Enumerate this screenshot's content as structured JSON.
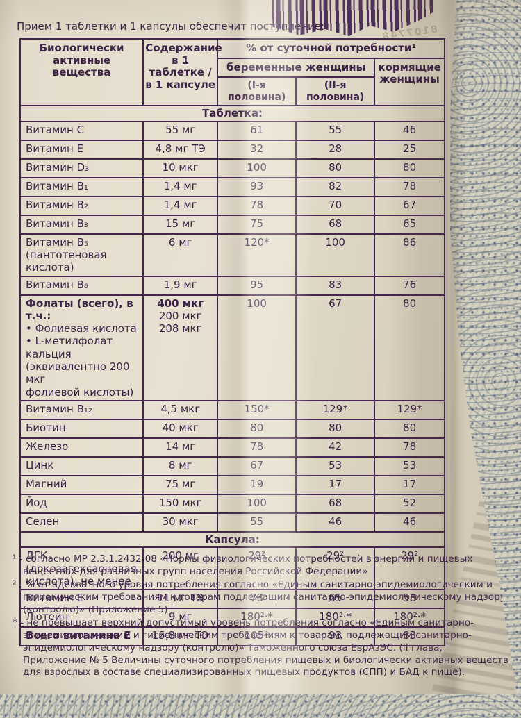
{
  "intro": "Прием 1 таблетки и 1 капсулы обеспечит поступление:",
  "ghost_print": "8107748",
  "colors": {
    "ink": "#3c2347",
    "paper": "#e2dac9",
    "barcode": "#4b2d5c",
    "fabric_pattern": "#58667c"
  },
  "table": {
    "headers": {
      "col_substance": "Биологически\nактивные вещества",
      "col_content": "Содержание\nв 1 таблетке /\nв 1 капсуле",
      "col_daily": "% от суточной потребности¹",
      "col_pregnant": "беременные  женщины",
      "col_pregnant_1": "(I-я половина)",
      "col_pregnant_2": "(II-я половина)",
      "col_nursing": "кормящие\nженщины"
    },
    "section_tablet": "Таблетка:",
    "section_capsule": "Капсула:",
    "tablet_rows": [
      {
        "name": "Витамин C",
        "amount": "55 мг",
        "values": [
          "61",
          "55",
          "46"
        ]
      },
      {
        "name": "Витамин E",
        "amount": "4,8 мг ТЭ",
        "values": [
          "32",
          "28",
          "25"
        ]
      },
      {
        "name": "Витамин D₃",
        "amount": "10 мкг",
        "values": [
          "100",
          "80",
          "80"
        ]
      },
      {
        "name": "Витамин B₁",
        "amount": "1,4 мг",
        "values": [
          "93",
          "82",
          "78"
        ]
      },
      {
        "name": "Витамин B₂",
        "amount": "1,4 мг",
        "values": [
          "78",
          "70",
          "67"
        ]
      },
      {
        "name": "Витамин B₃",
        "amount": "15 мг",
        "values": [
          "75",
          "68",
          "65"
        ]
      },
      {
        "name": "Витамин B₅\n(пантотеновая кислота)",
        "amount": "6 мг",
        "values": [
          "120*",
          "100",
          "86"
        ]
      },
      {
        "name": "Витамин B₆",
        "amount": "1,9 мг",
        "values": [
          "95",
          "83",
          "76"
        ]
      },
      {
        "name": "Фолаты (всего), в т.ч.:",
        "name_rest": "• Фолиевая кислота\n• L-метилфолат кальция\n(эквивалентно 200 мкг\nфолиевой кислоты)",
        "amount": "400 мкг",
        "amount_rest": "200 мкг\n208 мкг",
        "values": [
          "100",
          "67",
          "80"
        ],
        "bold_name": true,
        "bold_amount": true
      },
      {
        "name": "Витамин B₁₂",
        "amount": "4,5 мкг",
        "values": [
          "150*",
          "129*",
          "129*"
        ]
      },
      {
        "name": "Биотин",
        "amount": "40 мкг",
        "values": [
          "80",
          "80",
          "80"
        ]
      },
      {
        "name": "Железо",
        "amount": "14 мг",
        "values": [
          "78",
          "42",
          "78"
        ]
      },
      {
        "name": "Цинк",
        "amount": "8 мг",
        "values": [
          "67",
          "53",
          "53"
        ]
      },
      {
        "name": "Магний",
        "amount": "75 мг",
        "values": [
          "19",
          "17",
          "17"
        ]
      },
      {
        "name": "Йод",
        "amount": "150 мкг",
        "values": [
          "100",
          "68",
          "52"
        ]
      },
      {
        "name": "Селен",
        "amount": "30 мкг",
        "values": [
          "55",
          "46",
          "46"
        ]
      }
    ],
    "capsule_rows": [
      {
        "name": "ДГК (докозагексаеновая\nкислота), не менее",
        "amount": "200 мг",
        "values": [
          "29²",
          "29²",
          "29²"
        ]
      },
      {
        "name": "Витамин E",
        "amount": "11 мг ТЭ",
        "values": [
          "73",
          "65",
          "58"
        ]
      },
      {
        "name": "Лютеин",
        "amount": "9 мг",
        "values": [
          "180²·*",
          "180²·*",
          "180²·*"
        ]
      },
      {
        "name": "Всего витамина E",
        "amount": "15,8 мг ТЭ",
        "values": [
          "105*",
          "93",
          "83"
        ],
        "bold_name": true
      }
    ]
  },
  "footnotes": [
    {
      "marker": "¹",
      "text": "- согласно МР 2.3.1.2432-08 «Нормы физиологических потребностей в энергии и пищевых веществах для различных групп населения Российской Федерации»"
    },
    {
      "marker": "²",
      "text": "- % от адекватного уровня потребления согласно «Единым санитарно-эпидемиологическим и гигиеническим требованиям к товарам подлежащим санитарно-эпидемиологическому надзору (контролю)» (Приложение 5)."
    },
    {
      "marker": "*",
      "text": "- не превышает верхний допустимый уровень потребления согласно «Единым санитарно-эпидемиологическим и гигиеническим требованиям к товарам, подлежащим санитарно-эпидемиологическому надзору (контролю)» Таможенного союза ЕврАзЭС. (II глава, Приложение № 5 Величины суточного потребления пищевых и биологически активных веществ для взрослых в составе специализированных пищевых продуктов (СПП) и БАД к пище)."
    }
  ]
}
